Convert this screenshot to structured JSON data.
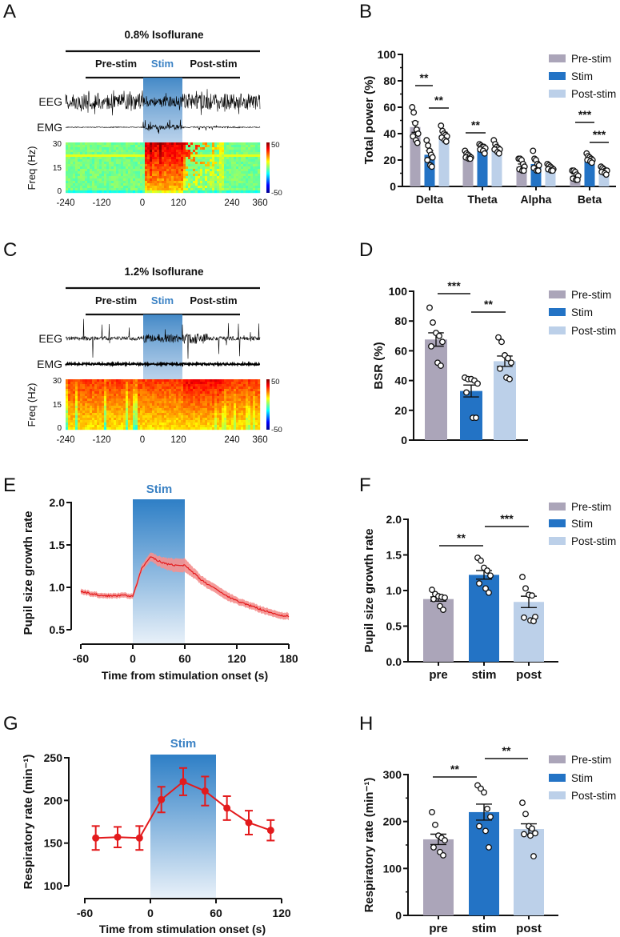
{
  "panel_labels": {
    "A": "A",
    "B": "B",
    "C": "C",
    "D": "D",
    "E": "E",
    "F": "F",
    "G": "G",
    "H": "H"
  },
  "legend": [
    "Pre-stim",
    "Stim",
    "Post-stim"
  ],
  "colors": {
    "pre": "#aba5b9",
    "stim": "#2373c5",
    "post": "#bcd0e9",
    "line": "#e31a1c",
    "band": "#9dc3ea",
    "stim_label": "#3b82c4"
  },
  "chart_data": [
    {
      "panel": "A",
      "type": "heatmap",
      "title": "0.8% Isoflurane",
      "epochs": [
        "Pre-stim",
        "Stim",
        "Post-stim"
      ],
      "traces": [
        "EEG",
        "EMG"
      ],
      "ylabel": "Freq (Hz)",
      "yticks": [
        "30",
        "15",
        "0"
      ],
      "xticks": [
        "-240",
        "-120",
        "0",
        "120",
        "240",
        "360"
      ],
      "colorbar": [
        "50",
        "-50"
      ]
    },
    {
      "panel": "B",
      "type": "bar",
      "ylabel": "Total power (%)",
      "ylim": [
        0,
        100
      ],
      "yticks": [
        "0",
        "20",
        "40",
        "60",
        "80",
        "100"
      ],
      "categories": [
        "Delta",
        "Theta",
        "Alpha",
        "Beta"
      ],
      "series": [
        {
          "name": "Pre-stim",
          "values": [
            45,
            23,
            15,
            8
          ],
          "sem": [
            4,
            1,
            2,
            1.5
          ],
          "points": [
            [
              60,
              56,
              48,
              43,
              40,
              38,
              35,
              33
            ],
            [
              27,
              25,
              24,
              23,
              22,
              22,
              21,
              21
            ],
            [
              21,
              21,
              20,
              17,
              15,
              13,
              12,
              12
            ],
            [
              12,
              12,
              11,
              9,
              8,
              6,
              5,
              5
            ]
          ]
        },
        {
          "name": "Stim",
          "values": [
            24,
            29,
            17,
            21
          ],
          "sem": [
            3,
            1.5,
            2,
            1.5
          ],
          "points": [
            [
              35,
              31,
              27,
              24,
              22,
              20,
              16,
              15
            ],
            [
              32,
              31,
              30,
              30,
              29,
              28,
              27,
              25
            ],
            [
              27,
              21,
              20,
              17,
              16,
              14,
              12,
              12
            ],
            [
              25,
              23,
              22,
              21,
              20,
              20,
              19,
              18
            ]
          ]
        },
        {
          "name": "Post-stim",
          "values": [
            39,
            29,
            14,
            12
          ],
          "sem": [
            2,
            1.5,
            1,
            1
          ],
          "points": [
            [
              46,
              42,
              40,
              39,
              38,
              37,
              35,
              34
            ],
            [
              35,
              32,
              30,
              29,
              28,
              28,
              26,
              25
            ],
            [
              17,
              16,
              15,
              14,
              13,
              13,
              12,
              12
            ],
            [
              15,
              14,
              13,
              12,
              12,
              11,
              10,
              9
            ]
          ]
        }
      ],
      "significance": [
        {
          "category": "Delta",
          "pair": "Pre-stim vs Stim",
          "label": "**"
        },
        {
          "category": "Delta",
          "pair": "Stim vs Post-stim",
          "label": "**"
        },
        {
          "category": "Theta",
          "pair": "Pre-stim vs Stim",
          "label": "**"
        },
        {
          "category": "Beta",
          "pair": "Pre-stim vs Stim",
          "label": "***"
        },
        {
          "category": "Beta",
          "pair": "Stim vs Post-stim",
          "label": "***"
        }
      ],
      "legend": "top-right"
    },
    {
      "panel": "C",
      "type": "heatmap",
      "title": "1.2% Isoflurane",
      "epochs": [
        "Pre-stim",
        "Stim",
        "Post-stim"
      ],
      "traces": [
        "EEG",
        "EMG"
      ],
      "ylabel": "Freq (Hz)",
      "yticks": [
        "30",
        "15",
        "0"
      ],
      "xticks": [
        "-240",
        "-120",
        "0",
        "120",
        "240",
        "360"
      ],
      "colorbar": [
        "50",
        "-50"
      ]
    },
    {
      "panel": "D",
      "type": "bar",
      "ylabel": "BSR (%)",
      "ylim": [
        0,
        100
      ],
      "yticks": [
        "0",
        "20",
        "40",
        "60",
        "80",
        "100"
      ],
      "categories": [
        "Pre-stim",
        "Stim",
        "Post-stim"
      ],
      "values": [
        67.6,
        33,
        53
      ],
      "sem": [
        4.5,
        4,
        3.5
      ],
      "points": [
        [
          89,
          79,
          72,
          70,
          66,
          63,
          52,
          50
        ],
        [
          42,
          41,
          41,
          40,
          38,
          32,
          15,
          15
        ],
        [
          69,
          66,
          57,
          55,
          52,
          48,
          42,
          41
        ]
      ],
      "significance": [
        {
          "pair": "Pre-stim vs Stim",
          "label": "***"
        },
        {
          "pair": "Stim vs Post-stim",
          "label": "**"
        }
      ],
      "legend": "top-right"
    },
    {
      "panel": "E",
      "type": "line",
      "ylabel": "Pupil size growth rate",
      "xlabel": "Time from stimulation onset (s)",
      "ylim": [
        0.5,
        2.0
      ],
      "yticks": [
        "0.5",
        "1.0",
        "1.5",
        "2.0"
      ],
      "xlim": [
        -60,
        180
      ],
      "xticks": [
        "-60",
        "0",
        "60",
        "120",
        "180"
      ],
      "stim_label": "Stim",
      "stim_window": [
        0,
        60
      ],
      "x": [
        -60,
        -50,
        -40,
        -30,
        -20,
        -10,
        0,
        5,
        10,
        20,
        30,
        40,
        50,
        60,
        70,
        80,
        90,
        100,
        110,
        120,
        130,
        140,
        150,
        160,
        170,
        180
      ],
      "y": [
        0.95,
        0.93,
        0.91,
        0.9,
        0.9,
        0.91,
        0.89,
        1.05,
        1.22,
        1.36,
        1.31,
        1.27,
        1.26,
        1.26,
        1.17,
        1.08,
        1.01,
        0.95,
        0.89,
        0.84,
        0.8,
        0.77,
        0.73,
        0.7,
        0.67,
        0.66
      ],
      "sem": [
        0.03,
        0.03,
        0.03,
        0.03,
        0.03,
        0.03,
        0.03,
        0.04,
        0.04,
        0.05,
        0.06,
        0.07,
        0.08,
        0.08,
        0.06,
        0.05,
        0.05,
        0.05,
        0.05,
        0.04,
        0.04,
        0.04,
        0.04,
        0.04,
        0.04,
        0.04
      ]
    },
    {
      "panel": "F",
      "type": "bar",
      "ylabel": "Pupil size growth rate",
      "ylim": [
        0,
        2.0
      ],
      "yticks": [
        "0.0",
        "0.5",
        "1.0",
        "1.5",
        "2.0"
      ],
      "categories": [
        "pre",
        "stim",
        "post"
      ],
      "values": [
        0.88,
        1.22,
        0.84
      ],
      "sem": [
        0.03,
        0.06,
        0.08
      ],
      "points": [
        [
          1.01,
          0.95,
          0.92,
          0.91,
          0.9,
          0.88,
          0.78,
          0.73
        ],
        [
          1.46,
          1.42,
          1.32,
          1.28,
          1.21,
          1.1,
          1.03,
          0.97
        ],
        [
          1.19,
          1.03,
          0.94,
          0.93,
          0.63,
          0.62,
          0.58,
          0.57
        ]
      ],
      "significance": [
        {
          "pair": "pre vs stim",
          "label": "**"
        },
        {
          "pair": "stim vs post",
          "label": "***"
        }
      ],
      "legend": "top-right"
    },
    {
      "panel": "G",
      "type": "line",
      "ylabel": "Respiratory rate (min⁻¹)",
      "xlabel": "Time from stimulation onset (s)",
      "ylim": [
        100,
        250
      ],
      "yticks": [
        "100",
        "150",
        "200",
        "250"
      ],
      "xlim": [
        -60,
        120
      ],
      "xticks": [
        "-60",
        "0",
        "60",
        "120"
      ],
      "stim_label": "Stim",
      "stim_window": [
        0,
        60
      ],
      "x": [
        -50,
        -30,
        -10,
        10,
        30,
        50,
        70,
        90,
        110
      ],
      "y": [
        156,
        157,
        156,
        201,
        222,
        211,
        191,
        174,
        165
      ],
      "sem": [
        14,
        12,
        14,
        15,
        16,
        17,
        14,
        14,
        12
      ]
    },
    {
      "panel": "H",
      "type": "bar",
      "ylabel": "Respiratory rate (min⁻¹)",
      "ylim": [
        0,
        300
      ],
      "yticks": [
        "0",
        "100",
        "200",
        "300"
      ],
      "categories": [
        "pre",
        "stim",
        "post"
      ],
      "values": [
        162,
        220,
        184
      ],
      "sem": [
        11,
        17,
        11
      ],
      "points": [
        [
          220,
          193,
          170,
          165,
          160,
          145,
          135,
          128
        ],
        [
          277,
          270,
          262,
          227,
          210,
          190,
          180,
          145
        ],
        [
          240,
          216,
          190,
          185,
          175,
          173,
          170,
          126
        ]
      ],
      "significance": [
        {
          "pair": "pre vs stim",
          "label": "**"
        },
        {
          "pair": "stim vs post",
          "label": "**"
        }
      ],
      "legend": "top-right"
    }
  ]
}
